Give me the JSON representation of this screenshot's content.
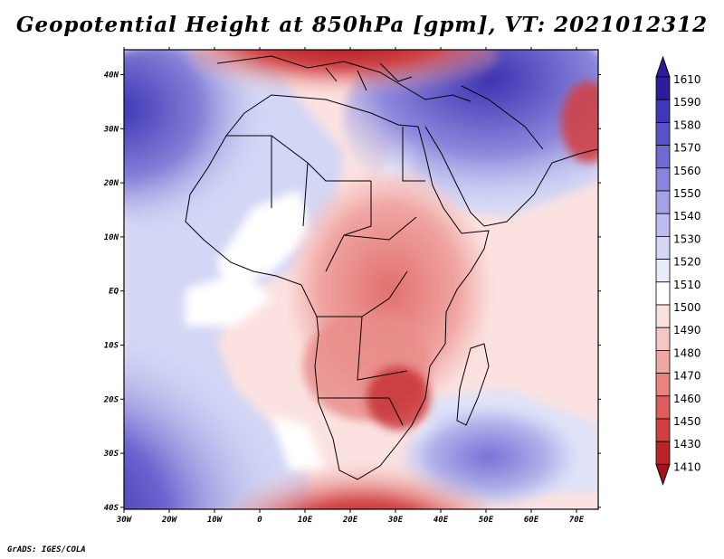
{
  "title": "Geopotential Height at 850hPa [gpm], VT: 2021012312",
  "credit": "GrADS: IGES/COLA",
  "map": {
    "variable": "Geopotential Height at 850hPa",
    "units": "gpm",
    "valid_time": "2021012312",
    "lon_range": [
      -30,
      75
    ],
    "lat_range": [
      -40,
      45
    ],
    "lon_ticks": [
      "30W",
      "20W",
      "10W",
      "0",
      "10E",
      "20E",
      "30E",
      "40E",
      "50E",
      "60E",
      "70E"
    ],
    "lat_ticks": [
      "40N",
      "30N",
      "20N",
      "10N",
      "EQ",
      "10S",
      "20S",
      "30S",
      "40S"
    ]
  },
  "colorbar": {
    "labels": [
      "1610",
      "1590",
      "1580",
      "1570",
      "1560",
      "1550",
      "1540",
      "1530",
      "1520",
      "1510",
      "1500",
      "1490",
      "1480",
      "1470",
      "1460",
      "1450",
      "1430",
      "1410"
    ],
    "colors": [
      "#2a1e9c",
      "#4037b8",
      "#5a52c8",
      "#6f69d2",
      "#8985dc",
      "#a3a2e6",
      "#bcbdee",
      "#d3d6f5",
      "#e9ecfb",
      "#ffffff",
      "#fbe2e0",
      "#f6c6c3",
      "#f0a6a3",
      "#e88380",
      "#de5e5d",
      "#d03e3f",
      "#bb2326",
      "#a0141a"
    ]
  }
}
